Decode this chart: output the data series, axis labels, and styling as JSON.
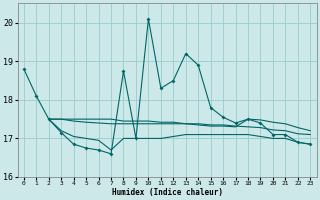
{
  "title": "",
  "xlabel": "Humidex (Indice chaleur)",
  "background_color": "#cce8e8",
  "grid_color": "#99cccc",
  "line_color": "#006666",
  "ylim": [
    16.0,
    20.5
  ],
  "xlim": [
    -0.5,
    23.5
  ],
  "yticks": [
    16,
    17,
    18,
    19,
    20
  ],
  "xticks": [
    0,
    1,
    2,
    3,
    4,
    5,
    6,
    7,
    8,
    9,
    10,
    11,
    12,
    13,
    14,
    15,
    16,
    17,
    18,
    19,
    20,
    21,
    22,
    23
  ],
  "series1_x": [
    0,
    1,
    2,
    3,
    4,
    5,
    6,
    7,
    8,
    9,
    10,
    11,
    12,
    13,
    14,
    15,
    16,
    17,
    18,
    19,
    20,
    21,
    22,
    23
  ],
  "series1_y": [
    18.8,
    18.1,
    17.5,
    17.15,
    16.85,
    16.75,
    16.7,
    16.6,
    18.75,
    17.0,
    20.1,
    18.3,
    18.5,
    19.2,
    18.9,
    17.8,
    17.55,
    17.4,
    17.5,
    17.4,
    17.1,
    17.1,
    16.9,
    16.85
  ],
  "series2_x": [
    2,
    3,
    4,
    5,
    6,
    7,
    8,
    9,
    10,
    11,
    12,
    13,
    14,
    15,
    16,
    17,
    18,
    19,
    20,
    21,
    22,
    23
  ],
  "series2_y": [
    17.5,
    17.2,
    17.05,
    17.0,
    16.95,
    16.7,
    17.0,
    17.0,
    17.0,
    17.0,
    17.05,
    17.1,
    17.1,
    17.1,
    17.1,
    17.1,
    17.1,
    17.05,
    17.0,
    17.0,
    16.9,
    16.85
  ],
  "series3_x": [
    2,
    3,
    4,
    5,
    6,
    7,
    8,
    9,
    10,
    11,
    12,
    13,
    14,
    15,
    16,
    17,
    18,
    19,
    20,
    21,
    22,
    23
  ],
  "series3_y": [
    17.5,
    17.5,
    17.45,
    17.42,
    17.4,
    17.38,
    17.38,
    17.38,
    17.38,
    17.38,
    17.38,
    17.38,
    17.38,
    17.35,
    17.35,
    17.32,
    17.3,
    17.28,
    17.22,
    17.2,
    17.12,
    17.1
  ],
  "series4_x": [
    2,
    3,
    4,
    5,
    6,
    7,
    8,
    9,
    10,
    11,
    12,
    13,
    14,
    15,
    16,
    17,
    18,
    19,
    20,
    21,
    22,
    23
  ],
  "series4_y": [
    17.5,
    17.5,
    17.5,
    17.5,
    17.5,
    17.5,
    17.45,
    17.45,
    17.45,
    17.42,
    17.42,
    17.38,
    17.35,
    17.32,
    17.32,
    17.3,
    17.5,
    17.48,
    17.42,
    17.38,
    17.28,
    17.2
  ]
}
